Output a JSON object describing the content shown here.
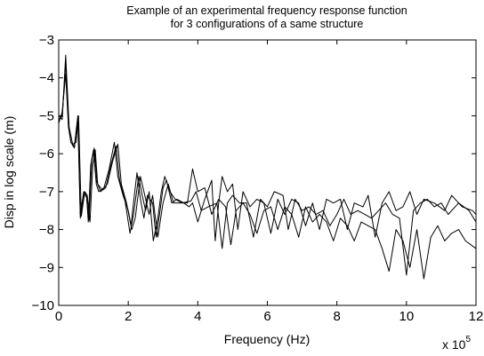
{
  "chart_data": {
    "type": "line",
    "title_lines": [
      "Example of an experimental frequency response function",
      "for 3 configurations of a same structure"
    ],
    "xlabel": "Frequency (Hz)",
    "ylabel": "Disp in log scale (m)",
    "x_multiplier_label": {
      "base": "x 10",
      "exponent": "5"
    },
    "xlim": [
      0,
      12
    ],
    "ylim": [
      -10,
      -3
    ],
    "xticks": [
      0,
      2,
      4,
      6,
      8,
      10,
      12
    ],
    "yticks": [
      -10,
      -9,
      -8,
      -7,
      -6,
      -5,
      -4,
      -3
    ],
    "xtick_labels": [
      "0",
      "2",
      "4",
      "6",
      "8",
      "10",
      "12"
    ],
    "ytick_labels": [
      "−10",
      "−9",
      "−8",
      "−7",
      "−6",
      "−5",
      "−4",
      "−3"
    ],
    "grid": false,
    "line_color": "#000000",
    "series": [
      {
        "points": [
          [
            0.0,
            -5.1
          ],
          [
            0.1,
            -5.0
          ],
          [
            0.2,
            -3.6
          ],
          [
            0.28,
            -5.2
          ],
          [
            0.35,
            -5.7
          ],
          [
            0.45,
            -5.8
          ],
          [
            0.55,
            -5.0
          ],
          [
            0.62,
            -7.6
          ],
          [
            0.72,
            -7.0
          ],
          [
            0.8,
            -7.1
          ],
          [
            0.85,
            -7.8
          ],
          [
            0.92,
            -6.3
          ],
          [
            1.0,
            -5.9
          ],
          [
            1.08,
            -6.8
          ],
          [
            1.15,
            -7.0
          ],
          [
            1.3,
            -6.9
          ],
          [
            1.45,
            -6.4
          ],
          [
            1.6,
            -5.7
          ],
          [
            1.7,
            -6.6
          ],
          [
            1.85,
            -7.1
          ],
          [
            2.0,
            -7.5
          ],
          [
            2.08,
            -7.9
          ],
          [
            2.15,
            -7.3
          ],
          [
            2.25,
            -6.5
          ],
          [
            2.35,
            -7.2
          ],
          [
            2.45,
            -7.7
          ],
          [
            2.55,
            -7.1
          ],
          [
            2.7,
            -7.3
          ],
          [
            2.8,
            -8.2
          ],
          [
            2.9,
            -7.6
          ],
          [
            3.0,
            -6.9
          ],
          [
            3.1,
            -6.7
          ],
          [
            3.25,
            -7.3
          ],
          [
            3.4,
            -7.2
          ],
          [
            3.6,
            -7.3
          ],
          [
            3.75,
            -7.4
          ],
          [
            3.85,
            -7.3
          ],
          [
            4.0,
            -7.8
          ],
          [
            4.2,
            -7.2
          ],
          [
            4.4,
            -6.7
          ],
          [
            4.5,
            -8.3
          ],
          [
            4.6,
            -7.3
          ],
          [
            4.7,
            -6.6
          ],
          [
            4.85,
            -7.0
          ],
          [
            5.0,
            -6.8
          ],
          [
            5.15,
            -8.0
          ],
          [
            5.3,
            -7.0
          ],
          [
            5.5,
            -7.4
          ],
          [
            5.7,
            -7.2
          ],
          [
            5.9,
            -7.3
          ],
          [
            6.1,
            -8.1
          ],
          [
            6.3,
            -7.2
          ],
          [
            6.5,
            -7.6
          ],
          [
            6.7,
            -7.2
          ],
          [
            6.9,
            -7.3
          ],
          [
            7.1,
            -7.9
          ],
          [
            7.3,
            -7.3
          ],
          [
            7.5,
            -8.0
          ],
          [
            7.7,
            -7.2
          ],
          [
            7.9,
            -7.3
          ],
          [
            8.1,
            -7.2
          ],
          [
            8.3,
            -8.0
          ],
          [
            8.5,
            -7.3
          ],
          [
            8.75,
            -7.4
          ],
          [
            8.9,
            -7.1
          ],
          [
            9.1,
            -8.2
          ],
          [
            9.3,
            -7.3
          ],
          [
            9.5,
            -7.0
          ],
          [
            9.7,
            -7.5
          ],
          [
            9.9,
            -7.4
          ],
          [
            10.1,
            -7.0
          ],
          [
            10.3,
            -7.6
          ],
          [
            10.5,
            -7.2
          ],
          [
            10.8,
            -7.3
          ],
          [
            11.1,
            -7.5
          ],
          [
            11.3,
            -7.1
          ],
          [
            11.6,
            -7.4
          ],
          [
            11.9,
            -7.5
          ],
          [
            12.0,
            -7.6
          ]
        ]
      },
      {
        "points": [
          [
            0.0,
            -5.2
          ],
          [
            0.1,
            -4.9
          ],
          [
            0.2,
            -3.9
          ],
          [
            0.28,
            -5.3
          ],
          [
            0.35,
            -5.7
          ],
          [
            0.45,
            -5.85
          ],
          [
            0.55,
            -5.05
          ],
          [
            0.62,
            -7.7
          ],
          [
            0.72,
            -7.05
          ],
          [
            0.8,
            -7.15
          ],
          [
            0.87,
            -7.75
          ],
          [
            0.95,
            -6.2
          ],
          [
            1.02,
            -5.85
          ],
          [
            1.1,
            -6.75
          ],
          [
            1.2,
            -7.0
          ],
          [
            1.35,
            -6.9
          ],
          [
            1.5,
            -6.3
          ],
          [
            1.65,
            -5.8
          ],
          [
            1.75,
            -6.7
          ],
          [
            1.9,
            -7.2
          ],
          [
            2.05,
            -8.1
          ],
          [
            2.15,
            -7.6
          ],
          [
            2.3,
            -6.6
          ],
          [
            2.4,
            -7.1
          ],
          [
            2.5,
            -7.5
          ],
          [
            2.6,
            -7.0
          ],
          [
            2.72,
            -8.3
          ],
          [
            2.85,
            -7.7
          ],
          [
            2.95,
            -7.0
          ],
          [
            3.05,
            -6.6
          ],
          [
            3.2,
            -7.0
          ],
          [
            3.35,
            -7.2
          ],
          [
            3.55,
            -7.3
          ],
          [
            3.8,
            -7.25
          ],
          [
            3.95,
            -7.0
          ],
          [
            4.1,
            -7.5
          ],
          [
            4.3,
            -7.4
          ],
          [
            4.55,
            -7.3
          ],
          [
            4.7,
            -8.5
          ],
          [
            4.85,
            -7.3
          ],
          [
            5.0,
            -7.1
          ],
          [
            5.2,
            -7.3
          ],
          [
            5.4,
            -7.3
          ],
          [
            5.6,
            -8.2
          ],
          [
            5.8,
            -7.2
          ],
          [
            6.0,
            -7.4
          ],
          [
            6.2,
            -7.0
          ],
          [
            6.45,
            -7.1
          ],
          [
            6.6,
            -8.0
          ],
          [
            6.8,
            -7.2
          ],
          [
            7.0,
            -7.5
          ],
          [
            7.2,
            -7.4
          ],
          [
            7.4,
            -7.6
          ],
          [
            7.6,
            -7.5
          ],
          [
            7.8,
            -7.9
          ],
          [
            8.0,
            -7.6
          ],
          [
            8.2,
            -7.2
          ],
          [
            8.4,
            -7.6
          ],
          [
            8.6,
            -7.5
          ],
          [
            8.8,
            -7.6
          ],
          [
            9.0,
            -7.7
          ],
          [
            9.2,
            -7.5
          ],
          [
            9.4,
            -7.3
          ],
          [
            9.6,
            -7.6
          ],
          [
            9.8,
            -7.7
          ],
          [
            10.0,
            -9.2
          ],
          [
            10.2,
            -7.5
          ],
          [
            10.4,
            -7.3
          ],
          [
            10.6,
            -7.2
          ],
          [
            10.8,
            -7.4
          ],
          [
            11.0,
            -7.3
          ],
          [
            11.2,
            -7.6
          ],
          [
            11.5,
            -7.3
          ],
          [
            11.8,
            -7.5
          ],
          [
            12.0,
            -7.8
          ]
        ]
      },
      {
        "points": [
          [
            0.0,
            -5.0
          ],
          [
            0.1,
            -5.1
          ],
          [
            0.2,
            -3.4
          ],
          [
            0.3,
            -5.3
          ],
          [
            0.4,
            -5.75
          ],
          [
            0.5,
            -5.7
          ],
          [
            0.57,
            -5.0
          ],
          [
            0.65,
            -7.65
          ],
          [
            0.75,
            -7.0
          ],
          [
            0.82,
            -7.1
          ],
          [
            0.9,
            -7.8
          ],
          [
            0.98,
            -6.3
          ],
          [
            1.05,
            -5.9
          ],
          [
            1.12,
            -6.8
          ],
          [
            1.25,
            -6.95
          ],
          [
            1.4,
            -6.8
          ],
          [
            1.55,
            -6.2
          ],
          [
            1.7,
            -5.75
          ],
          [
            1.8,
            -6.8
          ],
          [
            1.95,
            -7.3
          ],
          [
            2.1,
            -8.0
          ],
          [
            2.2,
            -7.7
          ],
          [
            2.35,
            -6.6
          ],
          [
            2.5,
            -7.2
          ],
          [
            2.6,
            -7.6
          ],
          [
            2.7,
            -7.1
          ],
          [
            2.85,
            -8.2
          ],
          [
            3.0,
            -7.3
          ],
          [
            3.15,
            -6.8
          ],
          [
            3.3,
            -7.3
          ],
          [
            3.5,
            -7.3
          ],
          [
            3.7,
            -7.3
          ],
          [
            3.85,
            -6.4
          ],
          [
            4.0,
            -7.0
          ],
          [
            4.2,
            -6.9
          ],
          [
            4.4,
            -7.6
          ],
          [
            4.6,
            -7.2
          ],
          [
            4.8,
            -7.4
          ],
          [
            4.95,
            -8.4
          ],
          [
            5.1,
            -7.5
          ],
          [
            5.3,
            -7.3
          ],
          [
            5.5,
            -7.6
          ],
          [
            5.7,
            -8.1
          ],
          [
            5.9,
            -7.5
          ],
          [
            6.1,
            -7.4
          ],
          [
            6.3,
            -8.0
          ],
          [
            6.5,
            -7.4
          ],
          [
            6.7,
            -7.6
          ],
          [
            6.9,
            -8.2
          ],
          [
            7.1,
            -7.4
          ],
          [
            7.3,
            -7.8
          ],
          [
            7.5,
            -7.6
          ],
          [
            7.7,
            -7.8
          ],
          [
            7.9,
            -8.3
          ],
          [
            8.1,
            -7.7
          ],
          [
            8.3,
            -7.9
          ],
          [
            8.5,
            -8.3
          ],
          [
            8.7,
            -7.8
          ],
          [
            8.9,
            -7.9
          ],
          [
            9.1,
            -8.0
          ],
          [
            9.3,
            -8.5
          ],
          [
            9.5,
            -9.1
          ],
          [
            9.7,
            -8.0
          ],
          [
            9.9,
            -8.3
          ],
          [
            10.1,
            -9.0
          ],
          [
            10.3,
            -8.0
          ],
          [
            10.5,
            -9.3
          ],
          [
            10.7,
            -8.2
          ],
          [
            10.9,
            -7.9
          ],
          [
            11.1,
            -8.3
          ],
          [
            11.3,
            -8.1
          ],
          [
            11.5,
            -8.0
          ],
          [
            11.7,
            -8.3
          ],
          [
            12.0,
            -8.5
          ]
        ]
      }
    ]
  }
}
